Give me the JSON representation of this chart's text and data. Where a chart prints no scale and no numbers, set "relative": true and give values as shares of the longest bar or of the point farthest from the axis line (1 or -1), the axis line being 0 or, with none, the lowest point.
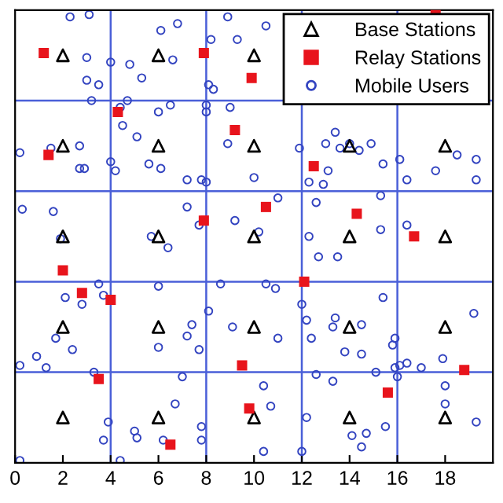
{
  "chart_data": {
    "type": "scatter",
    "relative": true,
    "xlim": [
      0,
      20
    ],
    "xticks": [
      0,
      2,
      4,
      6,
      8,
      10,
      12,
      14,
      16,
      18
    ],
    "tick_labels": "x",
    "grid": false,
    "legend": "top right",
    "ref_lines": [
      {
        "axis": "x",
        "value": 4,
        "color": "#4a5fd8"
      },
      {
        "axis": "x",
        "value": 8,
        "color": "#4a5fd8"
      },
      {
        "axis": "x",
        "value": 12,
        "color": "#4a5fd8"
      },
      {
        "axis": "x",
        "value": 16,
        "color": "#4a5fd8"
      },
      {
        "axis": "y",
        "value": 0.2,
        "color": "#4a5fd8"
      },
      {
        "axis": "y",
        "value": 0.4,
        "color": "#4a5fd8"
      },
      {
        "axis": "y",
        "value": 0.6,
        "color": "#4a5fd8"
      },
      {
        "axis": "y",
        "value": 0.8,
        "color": "#4a5fd8"
      }
    ],
    "series": [
      {
        "name": "Base Stations",
        "color": "#000000",
        "marker": "triangle",
        "x": [
          2,
          6,
          10,
          2,
          6,
          10,
          14,
          18,
          2,
          6,
          10,
          14,
          18,
          2,
          6,
          10,
          14,
          18,
          2,
          6,
          10,
          14,
          18
        ],
        "values": [
          0.9,
          0.9,
          0.9,
          0.7,
          0.7,
          0.7,
          0.7,
          0.7,
          0.5,
          0.5,
          0.5,
          0.5,
          0.5,
          0.3,
          0.3,
          0.3,
          0.3,
          0.3,
          0.1,
          0.1,
          0.1,
          0.1,
          0.1
        ]
      },
      {
        "name": "Relay Stations",
        "color": "#e8141c",
        "marker": "square",
        "x": [
          1.2,
          7.9,
          9.9,
          4.3,
          9.2,
          1.4,
          10.5,
          7.9,
          17.6,
          12.5,
          14.3,
          16.7,
          2.0,
          2.8,
          4.0,
          9.5,
          3.5,
          9.8,
          6.5,
          12.1,
          18.8,
          15.6
        ],
        "values": [
          0.905,
          0.905,
          0.85,
          0.775,
          0.735,
          0.68,
          0.565,
          0.535,
          1.0,
          0.655,
          0.55,
          0.5,
          0.425,
          0.375,
          0.36,
          0.215,
          0.185,
          0.12,
          0.04,
          0.4,
          0.205,
          0.155
        ]
      },
      {
        "name": "Mobile Users",
        "color": "#3344c0",
        "marker": "circle",
        "x": [
          2.3,
          3.1,
          6.1,
          6.8,
          8.9,
          10.5,
          8.2,
          9.3,
          3.0,
          4.0,
          4.8,
          6.6,
          3.0,
          3.5,
          5.3,
          8.1,
          8.3,
          3.2,
          4.7,
          4.4,
          6.5,
          6.0,
          8.0,
          8.0,
          9.0,
          4.5,
          5.1,
          0.2,
          1.5,
          2.7,
          8.9,
          2.7,
          2.9,
          4.0,
          4.2,
          5.6,
          6.1,
          7.2,
          7.8,
          8.0,
          10.0,
          0.3,
          1.6,
          7.2,
          9.2,
          7.7,
          1.9,
          5.7,
          10.2,
          13.4,
          11.9,
          13.0,
          13.6,
          14.0,
          14.4,
          14.9,
          15.4,
          16.1,
          18.5,
          19.3,
          13.1,
          12.3,
          12.9,
          16.4,
          17.6,
          19.3,
          11.0,
          12.6,
          15.3,
          12.3,
          15.3,
          16.4,
          6.4,
          3.5,
          3.7,
          2.1,
          2.8,
          6.0,
          8.6,
          10.5,
          8.1,
          7.4,
          7.2,
          9.1,
          7.7,
          6.0,
          1.7,
          2.4,
          0.9,
          0.2,
          1.3,
          3.3,
          7.0,
          10.4,
          6.7,
          10.7,
          3.9,
          5.0,
          5.1,
          7.8,
          3.7,
          6.2,
          7.8,
          4.4,
          0.2,
          10.4,
          12.7,
          13.5,
          10.9,
          15.4,
          12.0,
          12.2,
          13.4,
          13.3,
          14.5,
          12.4,
          11.0,
          19.2,
          15.9,
          15.8,
          13.8,
          14.5,
          17.9,
          16.4,
          16.1,
          15.9,
          17.0,
          15.1,
          16.0,
          12.6,
          13.3,
          18.0,
          18.0,
          12.2,
          15.5,
          14.1,
          14.7,
          14.5,
          12.0,
          19.3
        ],
        "values": [
          0.985,
          0.99,
          0.955,
          0.97,
          0.985,
          0.965,
          0.935,
          0.935,
          0.895,
          0.885,
          0.88,
          0.89,
          0.845,
          0.835,
          0.85,
          0.835,
          0.825,
          0.8,
          0.8,
          0.785,
          0.79,
          0.775,
          0.79,
          0.775,
          0.785,
          0.745,
          0.72,
          0.685,
          0.695,
          0.7,
          0.705,
          0.65,
          0.65,
          0.665,
          0.645,
          0.66,
          0.65,
          0.625,
          0.625,
          0.62,
          0.63,
          0.56,
          0.555,
          0.565,
          0.535,
          0.525,
          0.495,
          0.5,
          0.51,
          0.73,
          0.695,
          0.705,
          0.695,
          0.705,
          0.69,
          0.705,
          0.66,
          0.67,
          0.68,
          0.67,
          0.645,
          0.62,
          0.615,
          0.625,
          0.645,
          0.625,
          0.585,
          0.575,
          0.59,
          0.5,
          0.515,
          0.525,
          0.475,
          0.395,
          0.37,
          0.365,
          0.35,
          0.39,
          0.395,
          0.395,
          0.335,
          0.305,
          0.28,
          0.3,
          0.25,
          0.255,
          0.275,
          0.25,
          0.235,
          0.215,
          0.21,
          0.2,
          0.19,
          0.17,
          0.13,
          0.125,
          0.09,
          0.07,
          0.055,
          0.08,
          0.05,
          0.05,
          0.05,
          0.005,
          0.005,
          0.025,
          0.455,
          0.455,
          0.385,
          0.365,
          0.35,
          0.315,
          0.32,
          0.3,
          0.305,
          0.275,
          0.275,
          0.33,
          0.275,
          0.26,
          0.245,
          0.24,
          0.23,
          0.22,
          0.215,
          0.21,
          0.21,
          0.2,
          0.19,
          0.195,
          0.18,
          0.17,
          0.13,
          0.1,
          0.08,
          0.06,
          0.065,
          0.035,
          0.025,
          0.09
        ]
      }
    ]
  }
}
